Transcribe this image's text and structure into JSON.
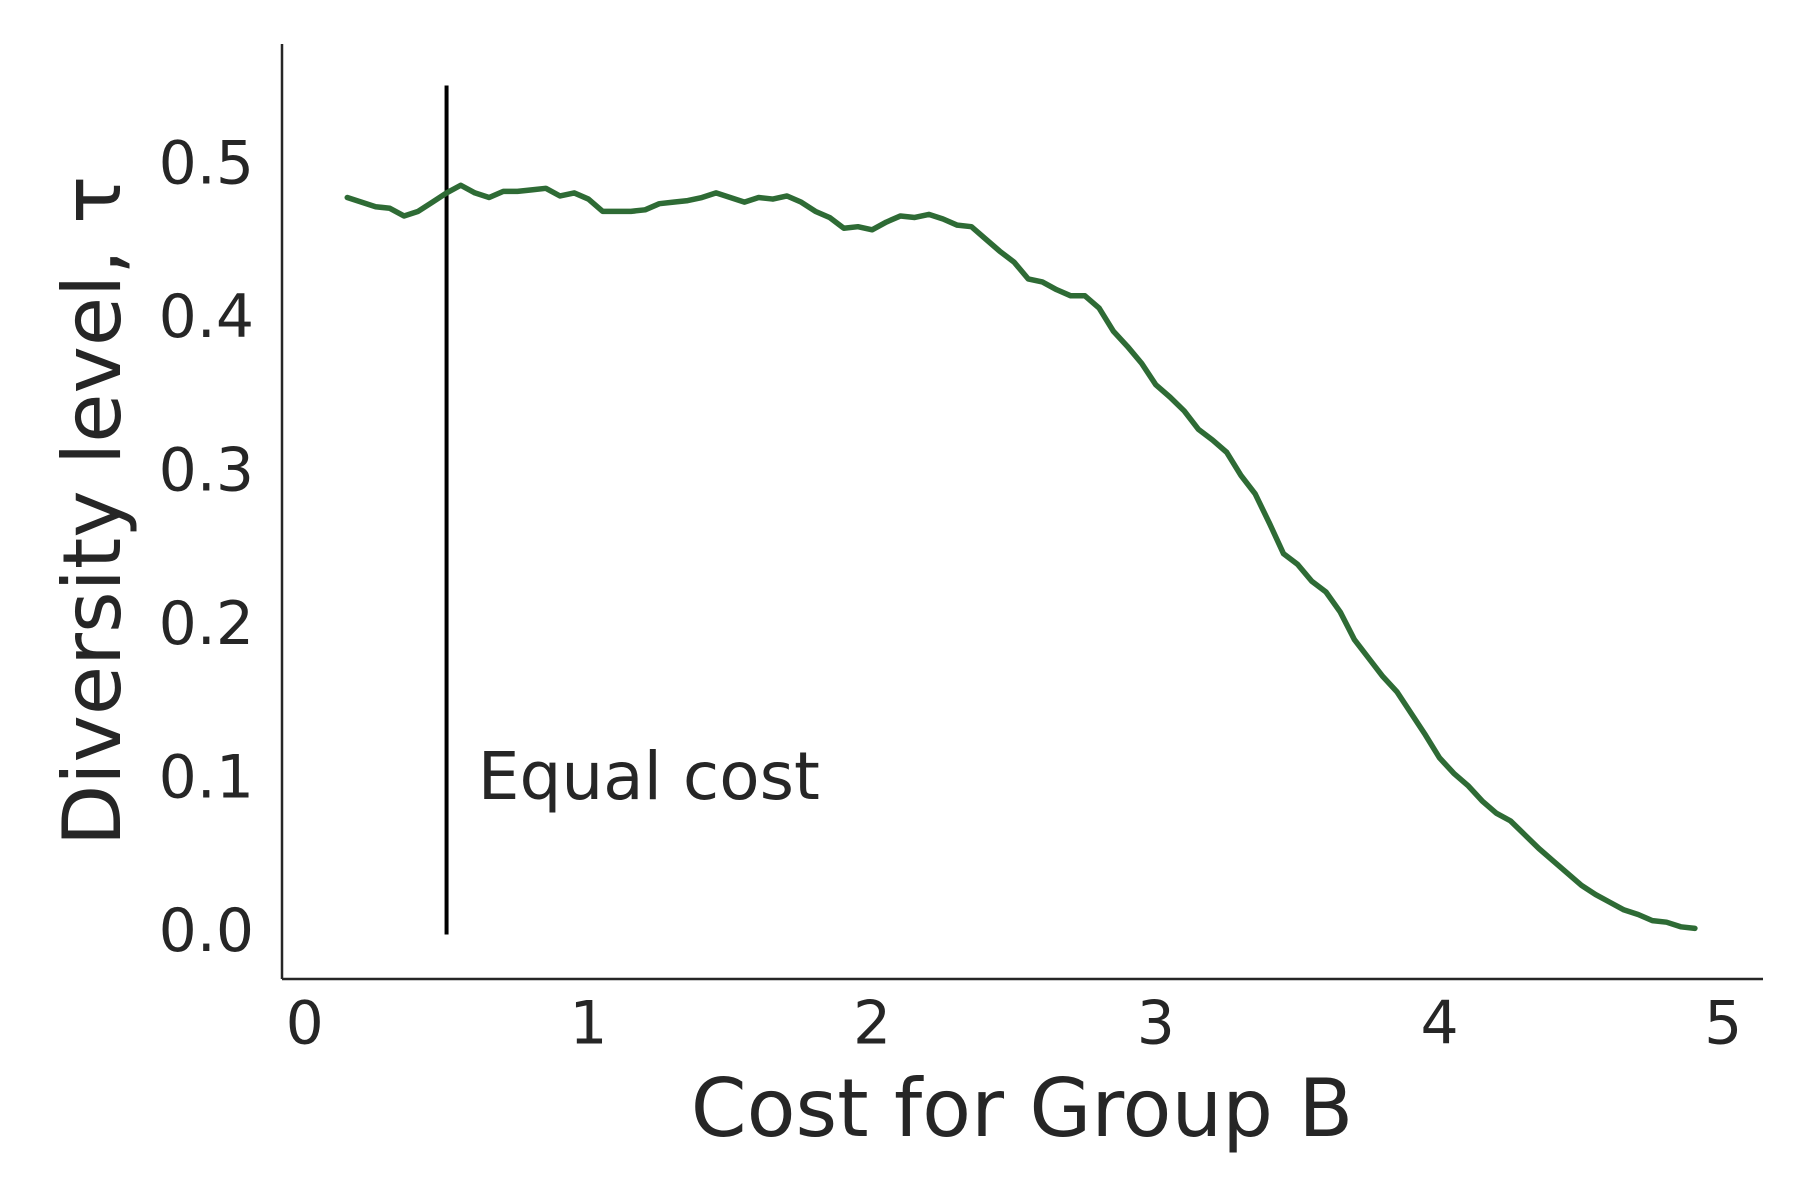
{
  "chart_data": {
    "type": "line",
    "xlabel": "Cost for Group B",
    "ylabel": "Diversity level, τ",
    "x": [
      0.15,
      0.2,
      0.25,
      0.3,
      0.35,
      0.4,
      0.45,
      0.5,
      0.55,
      0.6,
      0.65,
      0.7,
      0.75,
      0.8,
      0.85,
      0.9,
      0.95,
      1.0,
      1.05,
      1.1,
      1.15,
      1.2,
      1.25,
      1.3,
      1.35,
      1.4,
      1.45,
      1.5,
      1.55,
      1.6,
      1.65,
      1.7,
      1.75,
      1.8,
      1.85,
      1.9,
      1.95,
      2.0,
      2.05,
      2.1,
      2.15,
      2.2,
      2.25,
      2.3,
      2.35,
      2.4,
      2.45,
      2.5,
      2.55,
      2.6,
      2.65,
      2.7,
      2.75,
      2.8,
      2.85,
      2.9,
      2.95,
      3.0,
      3.05,
      3.1,
      3.15,
      3.2,
      3.25,
      3.3,
      3.35,
      3.4,
      3.45,
      3.5,
      3.55,
      3.6,
      3.65,
      3.7,
      3.75,
      3.8,
      3.85,
      3.9,
      3.95,
      4.0,
      4.05,
      4.1,
      4.15,
      4.2,
      4.25,
      4.3,
      4.35,
      4.4,
      4.45,
      4.5,
      4.55,
      4.6,
      4.65,
      4.7,
      4.75,
      4.8,
      4.85,
      4.9
    ],
    "series": [
      {
        "name": "Diversity level",
        "color": "#2e6b35",
        "values": [
          0.48,
          0.477,
          0.474,
          0.473,
          0.468,
          0.471,
          0.477,
          0.483,
          0.488,
          0.483,
          0.48,
          0.484,
          0.484,
          0.485,
          0.486,
          0.481,
          0.483,
          0.479,
          0.471,
          0.471,
          0.471,
          0.472,
          0.476,
          0.477,
          0.478,
          0.48,
          0.483,
          0.48,
          0.477,
          0.48,
          0.479,
          0.481,
          0.477,
          0.471,
          0.467,
          0.46,
          0.461,
          0.459,
          0.464,
          0.468,
          0.467,
          0.469,
          0.466,
          0.462,
          0.461,
          0.453,
          0.445,
          0.438,
          0.427,
          0.425,
          0.42,
          0.416,
          0.416,
          0.408,
          0.393,
          0.383,
          0.372,
          0.358,
          0.35,
          0.341,
          0.329,
          0.322,
          0.314,
          0.299,
          0.287,
          0.268,
          0.248,
          0.241,
          0.23,
          0.223,
          0.21,
          0.192,
          0.18,
          0.168,
          0.158,
          0.144,
          0.13,
          0.115,
          0.105,
          0.097,
          0.087,
          0.079,
          0.074,
          0.065,
          0.056,
          0.048,
          0.04,
          0.032,
          0.026,
          0.021,
          0.016,
          0.013,
          0.009,
          0.008,
          0.005,
          0.004
        ]
      }
    ],
    "vlines": [
      {
        "x": 0.5,
        "ymin": 0,
        "ymax": 0.553,
        "color": "#000000"
      }
    ],
    "annotations": [
      {
        "text": "Equal cost",
        "x": 0.61,
        "y": 0.1
      }
    ],
    "xlim": [
      -0.08,
      5.14
    ],
    "ylim": [
      -0.029,
      0.58
    ],
    "xticks": [
      0,
      1,
      2,
      3,
      4,
      5
    ],
    "yticks": [
      {
        "value": 0,
        "label": "0.0"
      },
      0.1,
      0.2,
      0.3,
      0.4,
      0.5
    ],
    "grid": false
  }
}
